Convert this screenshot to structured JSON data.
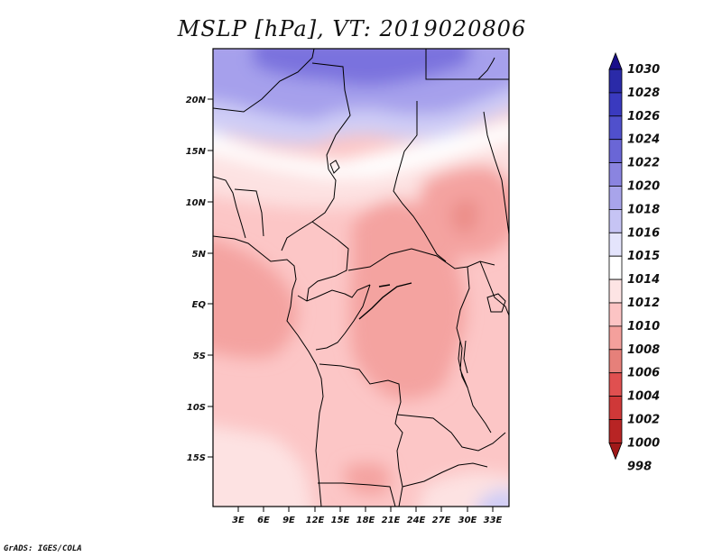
{
  "title": "MSLP [hPa], VT: 2019020806",
  "credit": "GrADS: IGES/COLA",
  "lat_labels": [
    "20N",
    "15N",
    "10N",
    "5N",
    "EQ",
    "5S",
    "10S",
    "15S"
  ],
  "lon_labels": [
    "3E",
    "6E",
    "9E",
    "12E",
    "15E",
    "18E",
    "21E",
    "24E",
    "27E",
    "30E",
    "33E"
  ],
  "colorbar": {
    "labels": [
      "1030",
      "1028",
      "1026",
      "1024",
      "1022",
      "1020",
      "1018",
      "1016",
      "1015",
      "1014",
      "1012",
      "1010",
      "1008",
      "1006",
      "1004",
      "1002",
      "1000",
      "998"
    ],
    "colors": [
      "#1a0e8a",
      "#2a2aa8",
      "#3a3abf",
      "#5050cc",
      "#6a66d6",
      "#8a84e0",
      "#a8a4ea",
      "#c6c4f4",
      "#e4e4fc",
      "#ffffff",
      "#fde4e4",
      "#fcc4c4",
      "#f4a09c",
      "#e6807a",
      "#e05050",
      "#cf3838",
      "#b82424",
      "#a01818"
    ]
  },
  "colors": {
    "high_dark": "#7a72de",
    "high_mid": "#a6a0ec",
    "high_light": "#cfcdf6",
    "neutral": "#ffffff",
    "low_light": "#fde2e2",
    "low_mid": "#fcc6c6",
    "low_deep": "#f4a3a0",
    "low_core": "#eb8d88"
  }
}
